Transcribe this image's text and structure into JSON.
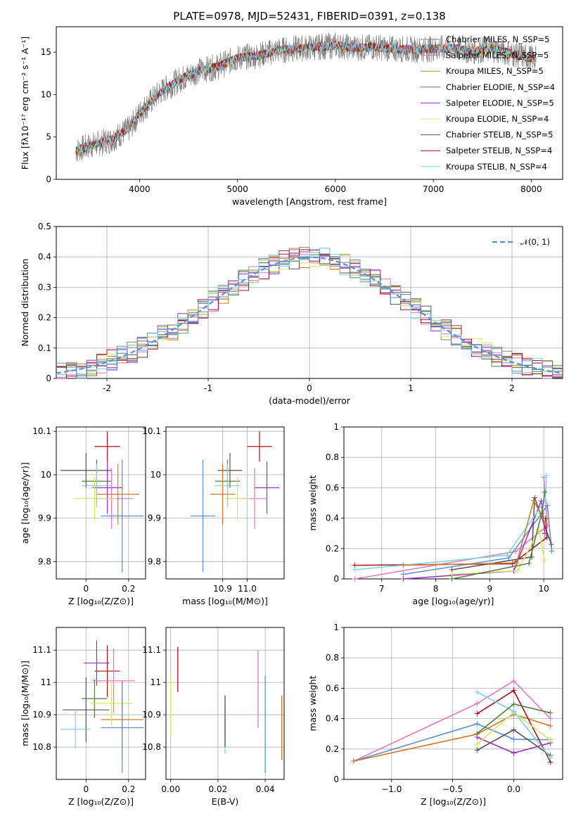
{
  "chart_data": [
    {
      "id": "spectrum",
      "type": "line",
      "title": "PLATE=0978, MJD=52431, FIBERID=0391, z=0.138",
      "xlabel": "wavelength [Angstrom, rest frame]",
      "ylabel": "Flux [fλ10⁻¹⁷ erg cm⁻² s⁻¹ A⁻¹]",
      "xlim": [
        3150,
        8320
      ],
      "ylim": [
        0,
        18
      ],
      "xticks": [
        4000,
        5000,
        6000,
        7000,
        8000
      ],
      "yticks": [
        0,
        5,
        10,
        15
      ],
      "grid": false,
      "legend_position": "right",
      "x": [
        3350,
        3500,
        3700,
        3900,
        4000,
        4200,
        4400,
        4600,
        4800,
        5000,
        5200,
        5400,
        5600,
        5800,
        6000,
        6200,
        6400,
        6600,
        6800,
        7000,
        7200,
        7400,
        7600,
        7800,
        8000,
        8050
      ],
      "series": [
        {
          "name": "Chabrier MILES, N_SSP=5",
          "color": "#808080",
          "values": [
            3.4,
            4.0,
            4.6,
            6.0,
            7.8,
            10.2,
            11.7,
            12.8,
            13.3,
            14.3,
            14.6,
            15.2,
            15.4,
            15.6,
            15.8,
            15.5,
            15.6,
            15.4,
            15.3,
            15.4,
            15.5,
            15.1,
            15.4,
            14.8,
            14.3,
            14.2
          ]
        },
        {
          "name": "Salpeter MILES, N_SSP=5",
          "color": "#e377c2",
          "values": [
            3.4,
            4.0,
            4.6,
            6.0,
            7.8,
            10.2,
            11.7,
            12.8,
            13.3,
            14.3,
            14.6,
            15.2,
            15.4,
            15.6,
            15.8,
            15.5,
            15.6,
            15.4,
            15.3,
            15.4,
            15.5,
            15.1,
            15.4,
            14.8,
            14.3,
            14.2
          ]
        },
        {
          "name": "Kroupa MILES, N_SSP=5",
          "color": "#bc8f1f",
          "values": [
            3.4,
            4.0,
            4.6,
            6.0,
            7.8,
            10.2,
            11.7,
            12.8,
            13.3,
            14.3,
            14.6,
            15.2,
            15.4,
            15.6,
            15.8,
            15.5,
            15.6,
            15.4,
            15.3,
            15.4,
            15.5,
            15.1,
            15.4,
            14.8,
            14.3,
            14.2
          ]
        },
        {
          "name": "Chabrier ELODIE, N_SSP=4",
          "color": "#4f7f3f",
          "values": [
            3.4,
            4.0,
            4.6,
            6.0,
            7.8,
            10.2,
            11.7,
            12.8,
            13.3,
            14.3,
            14.6,
            15.2,
            15.4,
            15.6,
            15.8,
            15.5,
            15.6,
            15.4,
            15.3,
            15.4,
            15.5,
            15.1,
            15.4,
            14.8,
            14.3,
            14.2
          ]
        },
        {
          "name": "Salpeter ELODIE, N_SSP=5",
          "color": "#9b30c0",
          "values": [
            3.4,
            4.0,
            4.6,
            6.0,
            7.8,
            10.2,
            11.7,
            12.8,
            13.3,
            14.3,
            14.6,
            15.2,
            15.4,
            15.6,
            15.8,
            15.5,
            15.6,
            15.4,
            15.3,
            15.4,
            15.5,
            15.1,
            15.4,
            14.8,
            14.3,
            14.2
          ]
        },
        {
          "name": "Kroupa ELODIE, N_SSP=4",
          "color": "#dbe36b",
          "values": [
            3.4,
            4.0,
            4.6,
            6.0,
            7.8,
            10.2,
            11.7,
            12.8,
            13.3,
            14.3,
            14.6,
            15.2,
            15.4,
            15.6,
            15.8,
            15.5,
            15.6,
            15.4,
            15.3,
            15.4,
            15.5,
            15.1,
            15.4,
            14.8,
            14.3,
            14.2
          ]
        },
        {
          "name": "Chabrier STELIB, N_SSP=5",
          "color": "#555555",
          "values": [
            3.4,
            4.0,
            4.6,
            6.0,
            7.8,
            10.2,
            11.7,
            12.8,
            13.3,
            14.3,
            14.6,
            15.2,
            15.4,
            15.6,
            15.8,
            15.5,
            15.6,
            15.4,
            15.3,
            15.4,
            15.5,
            15.1,
            15.4,
            14.8,
            14.3,
            14.2
          ]
        },
        {
          "name": "Salpeter STELIB, N_SSP=4",
          "color": "#a3141e",
          "values": [
            3.4,
            4.0,
            4.6,
            6.0,
            7.8,
            10.2,
            11.7,
            12.8,
            13.3,
            14.3,
            14.6,
            15.2,
            15.4,
            15.6,
            15.8,
            15.5,
            15.6,
            15.4,
            15.3,
            15.4,
            15.5,
            15.1,
            15.4,
            14.8,
            14.3,
            14.2
          ]
        },
        {
          "name": "Kroupa STELIB, N_SSP=4",
          "color": "#7fd3e0",
          "values": [
            3.4,
            4.0,
            4.6,
            6.0,
            7.8,
            10.2,
            11.7,
            12.8,
            13.3,
            14.3,
            14.6,
            15.2,
            15.4,
            15.6,
            15.8,
            15.5,
            15.6,
            15.4,
            15.3,
            15.4,
            15.5,
            15.1,
            15.4,
            14.8,
            14.3,
            14.2
          ]
        }
      ]
    },
    {
      "id": "residuals",
      "type": "line",
      "xlabel": "(data-model)/error",
      "ylabel": "Normed distribution",
      "xlim": [
        -2.5,
        2.5
      ],
      "ylim": [
        0,
        0.5
      ],
      "xticks": [
        -2,
        -1,
        0,
        1,
        2
      ],
      "yticks": [
        0,
        0.1,
        0.2,
        0.3,
        0.4,
        0.5
      ],
      "grid": true,
      "legend_position": "top-right",
      "legend_entry": "𝒩(0, 1)",
      "gaussian_color": "#5a8fd6",
      "histogram_colors": [
        "#808080",
        "#e377c2",
        "#d2772a",
        "#4f7f3f",
        "#9b30c0",
        "#dbe36b",
        "#555555",
        "#a3141e",
        "#7fd3e0",
        "#5a8fd6"
      ]
    },
    {
      "id": "age-vs-Z",
      "type": "scatter",
      "xlabel": "Z [log₁₀(Z/Z⊙)]",
      "ylabel": "age  [log₁₀(age/yr)]",
      "xlim": [
        -0.14,
        0.28
      ],
      "ylim": [
        9.76,
        10.11
      ],
      "xticks": [
        0.0,
        0.2
      ],
      "yticks": [
        9.8,
        9.9,
        10.0,
        10.1
      ],
      "grid": true,
      "points": [
        {
          "x": 0.0,
          "y": 10.01,
          "xerr": 0.12,
          "yerr": 0.04,
          "color": "#555555"
        },
        {
          "x": 0.1,
          "y": 10.065,
          "xerr": 0.06,
          "yerr": 0.035,
          "color": "#a3141e"
        },
        {
          "x": 0.05,
          "y": 9.985,
          "xerr": 0.07,
          "yerr": 0.05,
          "color": "#4f7f3f"
        },
        {
          "x": 0.1,
          "y": 9.97,
          "xerr": 0.07,
          "yerr": 0.06,
          "color": "#9b30c0"
        },
        {
          "x": 0.15,
          "y": 9.955,
          "xerr": 0.1,
          "yerr": 0.07,
          "color": "#d2772a"
        },
        {
          "x": 0.12,
          "y": 9.945,
          "xerr": 0.1,
          "yerr": 0.07,
          "color": "#e377c2"
        },
        {
          "x": 0.04,
          "y": 9.945,
          "xerr": 0.1,
          "yerr": 0.05,
          "color": "#dbe36b"
        },
        {
          "x": 0.17,
          "y": 9.905,
          "xerr": 0.1,
          "yerr": 0.13,
          "color": "#5a8fd6"
        },
        {
          "x": 0.05,
          "y": 9.975,
          "xerr": 0.07,
          "yerr": 0.05,
          "color": "#7fd3e0"
        }
      ]
    },
    {
      "id": "age-vs-mass",
      "type": "scatter",
      "xlabel": "mass [log₁₀(M/M⊙)]",
      "ylabel": "",
      "xlim": [
        10.67,
        11.15
      ],
      "ylim": [
        9.76,
        10.11
      ],
      "xticks": [
        10.9,
        11.0
      ],
      "xticklabels": [
        "10.9",
        "11.0"
      ],
      "yticks": [
        9.8,
        9.9,
        10.0,
        10.1
      ],
      "grid": true
    },
    {
      "id": "mass-weight-vs-age",
      "type": "line",
      "xlabel": "age  [log₁₀(age/yr)]",
      "ylabel": "mass weight",
      "xlim": [
        6.3,
        10.35
      ],
      "ylim": [
        0,
        1.0
      ],
      "xticks": [
        7,
        8,
        9,
        10
      ],
      "yticks": [
        0,
        0.2,
        0.4,
        0.6,
        0.8,
        1.0
      ],
      "grid": true
    },
    {
      "id": "mass-vs-Z",
      "type": "scatter",
      "xlabel": "Z [log₁₀(Z/Z⊙)]",
      "ylabel": "mass [log₁₀(M/M⊙)]",
      "xlim": [
        -0.14,
        0.28
      ],
      "ylim": [
        10.7,
        11.17
      ],
      "xticks": [
        0.0,
        0.2
      ],
      "yticks": [
        10.8,
        10.9,
        11.0,
        11.1
      ],
      "grid": true
    },
    {
      "id": "mass-vs-EBV",
      "type": "scatter",
      "xlabel": "E(B-V)",
      "ylabel": "",
      "xlim": [
        -0.002,
        0.048
      ],
      "ylim": [
        10.7,
        11.17
      ],
      "xticks": [
        0.0,
        0.02,
        0.04
      ],
      "xticklabels": [
        "0.00",
        "0.02",
        "0.04"
      ],
      "yticks": [
        10.8,
        10.9,
        11.0,
        11.1
      ],
      "grid": true
    },
    {
      "id": "mass-weight-vs-Z",
      "type": "line",
      "xlabel": "Z [log₁₀(Z/Z⊙)]",
      "ylabel": "mass weight",
      "xlim": [
        -1.39,
        0.4
      ],
      "ylim": [
        0,
        1.0
      ],
      "xticks": [
        -1.0,
        -0.5,
        0.0
      ],
      "xticklabels": [
        "−1.0",
        "−0.5",
        "0.0"
      ],
      "yticks": [
        0,
        0.2,
        0.4,
        0.6,
        0.8,
        1.0
      ],
      "grid": true
    }
  ]
}
